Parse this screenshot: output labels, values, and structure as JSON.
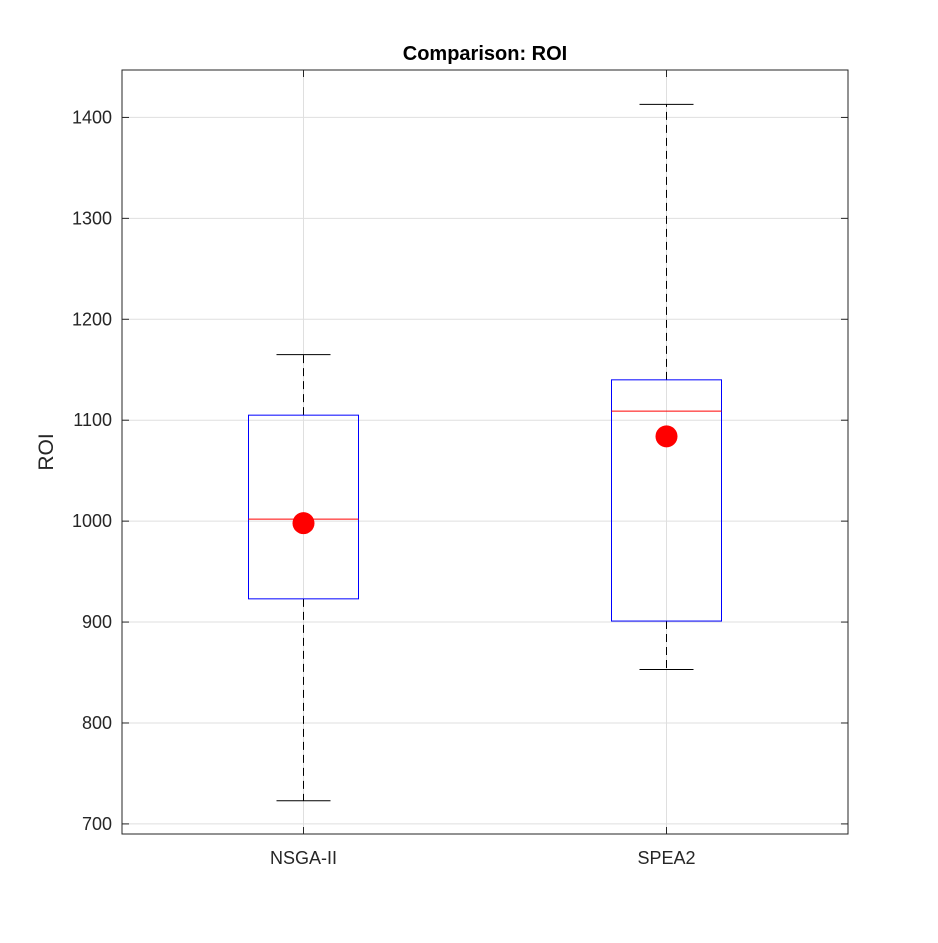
{
  "chart_data": {
    "type": "box",
    "title": "Comparison: ROI",
    "xlabel": "",
    "ylabel": "ROI",
    "categories": [
      "NSGA-II",
      "SPEA2"
    ],
    "ylim": [
      690,
      1447
    ],
    "yticks": [
      700,
      800,
      900,
      1000,
      1100,
      1200,
      1300,
      1400
    ],
    "grid": true,
    "boxes": [
      {
        "category": "NSGA-II",
        "whisker_low": 723,
        "q1": 923,
        "median": 1002,
        "q3": 1105,
        "whisker_high": 1165,
        "mean": 998
      },
      {
        "category": "SPEA2",
        "whisker_low": 853,
        "q1": 901,
        "median": 1109,
        "q3": 1140,
        "whisker_high": 1413,
        "mean": 1084
      }
    ],
    "colors": {
      "box": "#0000ff",
      "median": "#ff0000",
      "mean_marker": "#ff0000",
      "whisker": "#000000",
      "grid": "#dfdfdf",
      "axis": "#262626"
    }
  }
}
